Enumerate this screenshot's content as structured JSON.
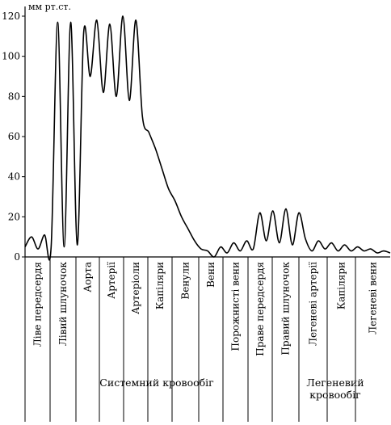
{
  "chart_data": {
    "type": "line",
    "ylabel": "мм рт.ст.",
    "ylim": [
      0,
      120
    ],
    "yticks": [
      "0",
      "20",
      "40",
      "60",
      "80",
      "100",
      "120"
    ],
    "xlabel": "",
    "grid": false,
    "series": [
      {
        "x": [
          0,
          0.25,
          0.5,
          0.75,
          1.0,
          1.25,
          1.5,
          1.75,
          2.0,
          2.25,
          2.5,
          2.75,
          3.0,
          3.25,
          3.5,
          3.75,
          4.0,
          4.25,
          4.5,
          4.75,
          5.0,
          5.25,
          5.5,
          5.75,
          6.0,
          6.25,
          6.5,
          6.75,
          7.0,
          7.25,
          7.5,
          7.75,
          8.0,
          8.25,
          8.5,
          8.75,
          9.0,
          9.25,
          9.5,
          9.75,
          10.0,
          10.25,
          10.5,
          10.75,
          11.0,
          11.25,
          11.5,
          11.75,
          12.0,
          12.25,
          12.5,
          12.75,
          13.0,
          13.25,
          13.5,
          13.75,
          14.0
        ],
        "y": [
          5,
          10,
          4,
          11,
          5,
          117,
          5,
          117,
          6,
          112,
          90,
          118,
          82,
          116,
          80,
          120,
          78,
          118,
          70,
          62,
          54,
          44,
          34,
          28,
          20,
          14,
          8,
          4,
          3,
          0,
          5,
          2,
          7,
          3,
          8,
          4,
          22,
          8,
          23,
          7,
          24,
          6,
          22,
          9,
          3,
          8,
          4,
          7,
          3,
          6,
          3,
          5,
          3,
          4,
          2,
          3,
          2
        ]
      }
    ],
    "segments": [
      "Ліве передсердя",
      "Лівий шлуночок",
      "Аорта",
      "Артерії",
      "Артеріоли",
      "Капіляри",
      "Венули",
      "Вени",
      "Порожнисті вени",
      "Праве передсердя",
      "Правий шлуночок",
      "Легеневі артерії",
      "Капіляри",
      "Легеневі вени"
    ],
    "groups": [
      "Системний кровообіг",
      "Легеневий кровообіг"
    ]
  }
}
